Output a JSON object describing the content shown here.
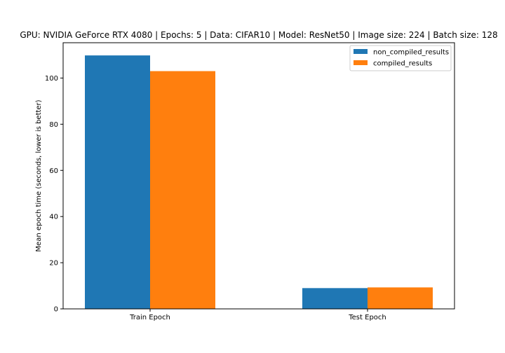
{
  "chart_data": {
    "type": "bar",
    "title": "GPU: NVIDIA GeForce RTX 4080 | Epochs: 5 | Data: CIFAR10 | Model: ResNet50 | Image size: 224 | Batch size: 128",
    "xlabel": "",
    "ylabel": "Mean epoch time (seconds, lower is better)",
    "categories": [
      "Train Epoch",
      "Test Epoch"
    ],
    "series": [
      {
        "name": "non_compiled_results",
        "color": "#1f77b4",
        "values": [
          109.8,
          9.0
        ]
      },
      {
        "name": "compiled_results",
        "color": "#ff7f0e",
        "values": [
          103.0,
          9.3
        ]
      }
    ],
    "ylim": [
      0,
      115.3
    ],
    "yticks": [
      0,
      20,
      40,
      60,
      80,
      100
    ],
    "grid": false,
    "legend_position": "top-right"
  }
}
